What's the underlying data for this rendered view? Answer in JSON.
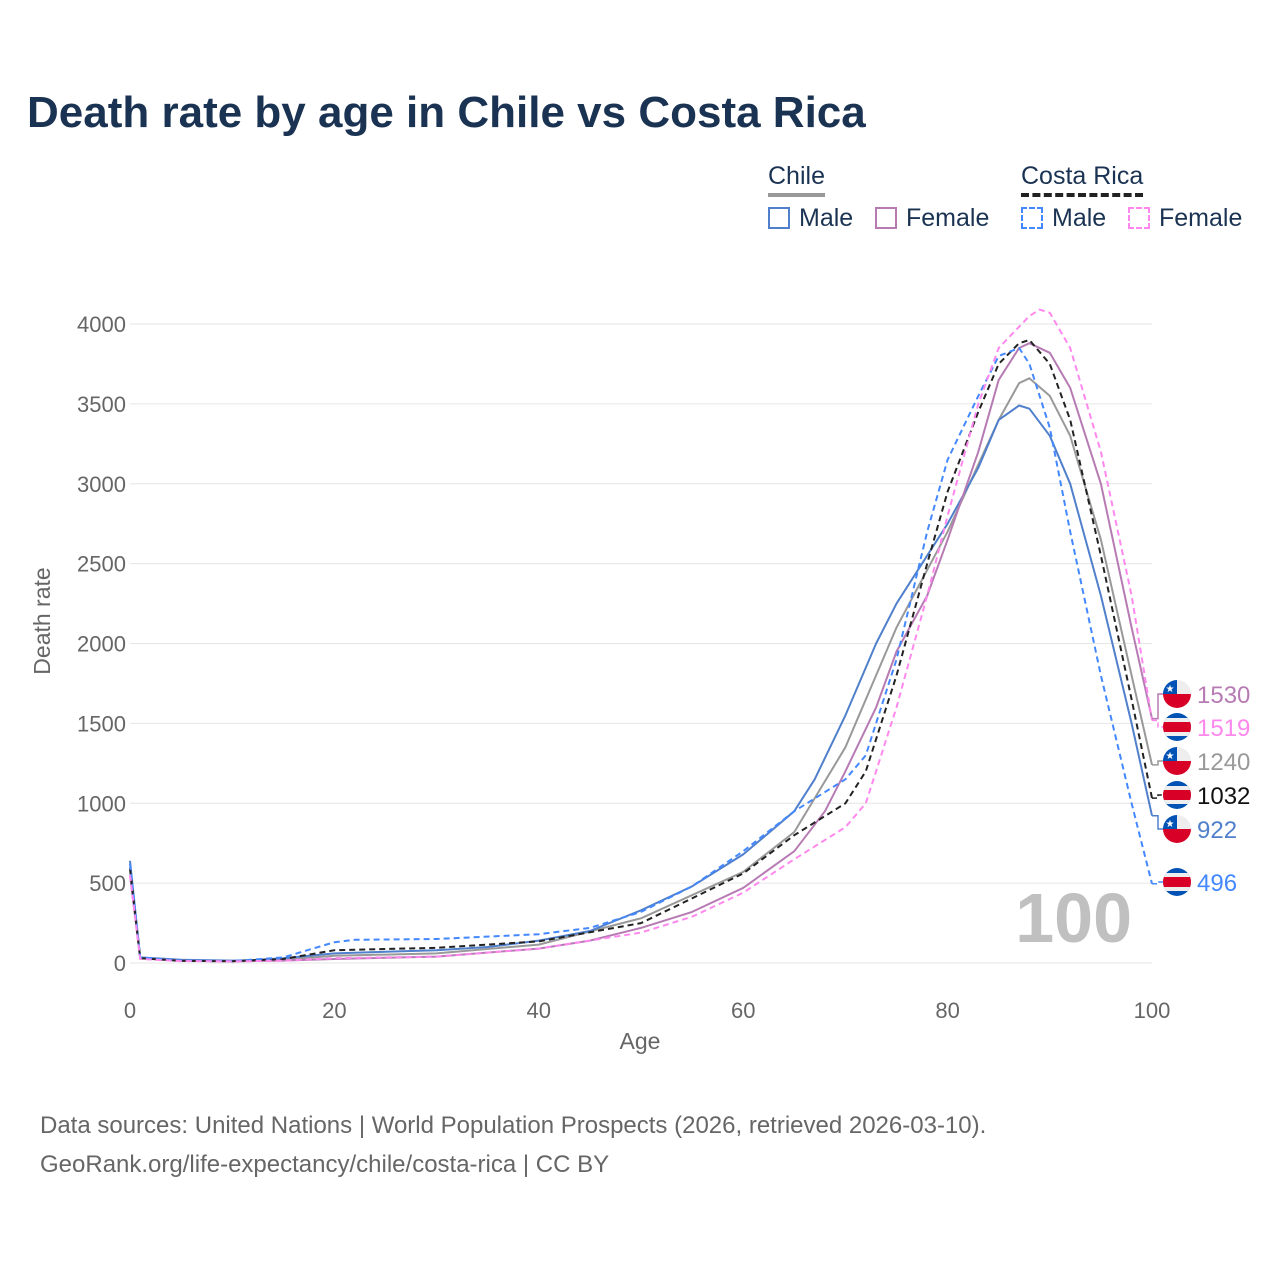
{
  "title": "Death rate by age in Chile vs Costa Rica",
  "legend": {
    "groups": [
      {
        "name": "Chile",
        "items": [
          "Male",
          "Female"
        ]
      },
      {
        "name": "Costa Rica",
        "items": [
          "Male",
          "Female"
        ]
      }
    ]
  },
  "footer": {
    "line1": "Data sources: United Nations | World Population Prospects (2026, retrieved 2026-03-10).",
    "line2": "GeoRank.org/life-expectancy/chile/costa-rica | CC BY"
  },
  "chart_data": {
    "type": "line",
    "xlabel": "Age",
    "ylabel": "Death rate",
    "xlim": [
      0,
      100
    ],
    "ylim": [
      0,
      4000
    ],
    "xticks": [
      "0",
      "20",
      "40",
      "60",
      "80",
      "100"
    ],
    "yticks": [
      "0",
      "500",
      "1000",
      "1500",
      "2000",
      "2500",
      "3000",
      "3500",
      "4000"
    ],
    "watermark": "100",
    "grid": true,
    "series": [
      {
        "name": "Chile Total",
        "country": "Chile",
        "color": "#999999",
        "dash": false,
        "end_label": "1240",
        "x": [
          0,
          1,
          5,
          10,
          15,
          20,
          30,
          40,
          50,
          60,
          65,
          70,
          75,
          80,
          85,
          87,
          88,
          90,
          92,
          95,
          98,
          100
        ],
        "y": [
          600,
          32,
          17,
          12,
          20,
          45,
          60,
          115,
          280,
          570,
          820,
          1350,
          2100,
          2700,
          3400,
          3630,
          3660,
          3550,
          3300,
          2650,
          1800,
          1240
        ]
      },
      {
        "name": "Chile Male",
        "country": "Chile",
        "color": "#5080cc",
        "dash": false,
        "end_label": "922",
        "x": [
          0,
          1,
          5,
          10,
          12,
          15,
          20,
          25,
          30,
          35,
          40,
          45,
          50,
          55,
          60,
          65,
          67,
          70,
          73,
          75,
          78,
          80,
          83,
          85,
          87,
          88,
          90,
          92,
          95,
          98,
          100
        ],
        "y": [
          640,
          35,
          20,
          15,
          18,
          30,
          60,
          70,
          80,
          100,
          140,
          200,
          330,
          480,
          680,
          950,
          1150,
          1550,
          2000,
          2250,
          2550,
          2750,
          3100,
          3400,
          3490,
          3470,
          3300,
          3000,
          2300,
          1500,
          922
        ]
      },
      {
        "name": "Chile Female",
        "country": "Chile",
        "color": "#b77bb4",
        "dash": false,
        "end_label": "1530",
        "x": [
          0,
          1,
          5,
          10,
          15,
          20,
          30,
          40,
          45,
          50,
          55,
          60,
          65,
          68,
          70,
          73,
          75,
          78,
          80,
          83,
          85,
          87,
          88,
          90,
          92,
          95,
          98,
          100
        ],
        "y": [
          550,
          30,
          15,
          10,
          15,
          25,
          40,
          90,
          140,
          220,
          320,
          470,
          700,
          950,
          1200,
          1600,
          1950,
          2300,
          2650,
          3200,
          3650,
          3850,
          3880,
          3820,
          3600,
          3000,
          2100,
          1530
        ]
      },
      {
        "name": "Costa Rica Total",
        "country": "Costa Rica",
        "color": "#222222",
        "dash": true,
        "end_label": "1032",
        "x": [
          0,
          1,
          5,
          10,
          15,
          20,
          30,
          40,
          50,
          60,
          65,
          70,
          72,
          75,
          78,
          80,
          83,
          85,
          87,
          88,
          90,
          92,
          95,
          98,
          100
        ],
        "y": [
          590,
          30,
          13,
          11,
          25,
          80,
          95,
          135,
          250,
          560,
          800,
          1000,
          1200,
          1800,
          2500,
          2950,
          3450,
          3750,
          3880,
          3900,
          3750,
          3400,
          2550,
          1650,
          1032
        ]
      },
      {
        "name": "Costa Rica Male",
        "country": "Costa Rica",
        "color": "#4488ff",
        "dash": true,
        "end_label": "496",
        "x": [
          0,
          1,
          5,
          10,
          15,
          20,
          22,
          30,
          40,
          45,
          50,
          55,
          60,
          65,
          70,
          72,
          75,
          78,
          80,
          83,
          85,
          87,
          88,
          90,
          92,
          95,
          98,
          100
        ],
        "y": [
          620,
          35,
          15,
          12,
          35,
          130,
          145,
          150,
          180,
          220,
          320,
          480,
          700,
          950,
          1150,
          1300,
          1900,
          2700,
          3150,
          3550,
          3800,
          3850,
          3750,
          3350,
          2700,
          1800,
          1000,
          496
        ]
      },
      {
        "name": "Costa Rica Female",
        "country": "Costa Rica",
        "color": "#ff88ee",
        "dash": true,
        "end_label": "1519",
        "x": [
          0,
          1,
          5,
          10,
          15,
          20,
          30,
          40,
          50,
          55,
          60,
          65,
          70,
          72,
          75,
          78,
          80,
          83,
          85,
          88,
          89,
          90,
          92,
          95,
          98,
          100
        ],
        "y": [
          550,
          25,
          12,
          10,
          15,
          30,
          40,
          90,
          190,
          290,
          440,
          650,
          850,
          1000,
          1600,
          2300,
          2800,
          3500,
          3850,
          4050,
          4090,
          4070,
          3850,
          3200,
          2300,
          1519
        ]
      }
    ]
  }
}
